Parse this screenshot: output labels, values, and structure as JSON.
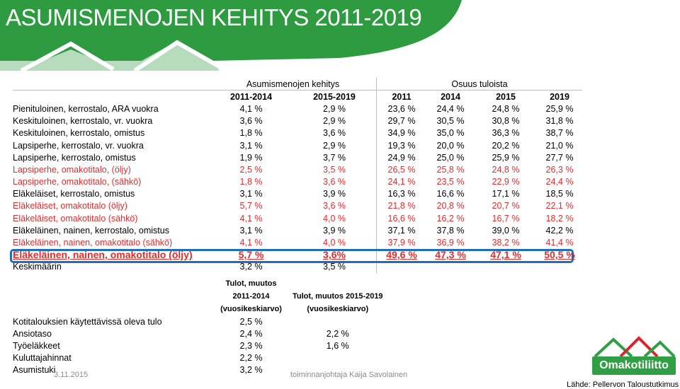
{
  "title": "ASUMISMENOJEN KEHITYS 2011-2019",
  "colors": {
    "banner": "#2e9b41",
    "red": "#e32b2b",
    "highlight": "#1f6fb7"
  },
  "table": {
    "group_headers": {
      "kehitys": "Asumismenojen kehitys",
      "osuus": "Osuus tuloista"
    },
    "column_headers": [
      "2011-2014",
      "2015-2019",
      "2011",
      "2014",
      "2015",
      "2019"
    ],
    "rows": [
      {
        "label": "Pienituloinen, kerrostalo, ARA vuokra",
        "v": [
          "4,1 %",
          "2,9 %",
          "23,6 %",
          "24,4 %",
          "24,8 %",
          "25,9 %"
        ]
      },
      {
        "label": "Keskituloinen, kerrostalo, vr. vuokra",
        "v": [
          "3,6 %",
          "2,9 %",
          "29,7 %",
          "30,5 %",
          "30,8 %",
          "31,8 %"
        ]
      },
      {
        "label": "Keskituloinen, kerrostalo, omistus",
        "v": [
          "1,8 %",
          "3,6 %",
          "34,9 %",
          "35,0 %",
          "36,3 %",
          "38,7 %"
        ]
      },
      {
        "label": "Lapsiperhe, kerrostalo, vr. vuokra",
        "v": [
          "3,1 %",
          "2,9 %",
          "19,3 %",
          "20,0 %",
          "20,2 %",
          "21,0 %"
        ]
      },
      {
        "label": "Lapsiperhe, kerrostalo, omistus",
        "v": [
          "1,9 %",
          "3,7 %",
          "24,9 %",
          "25,0 %",
          "25,9 %",
          "27,7 %"
        ]
      },
      {
        "label": "Lapsiperhe, omakotitalo, (öljy)",
        "v": [
          "2,5 %",
          "3,5 %",
          "26,5 %",
          "25,8 %",
          "24,8 %",
          "26,3 %"
        ]
      },
      {
        "label": "Lapsiperhe, omakotitalo, (sähkö)",
        "v": [
          "1,8 %",
          "3,6 %",
          "24,1 %",
          "23,5 %",
          "22,9 %",
          "24,4 %"
        ]
      },
      {
        "label": "Eläkeläiset, kerrostalo, omistus",
        "v": [
          "3,1 %",
          "3,9 %",
          "16,3 %",
          "16,6 %",
          "17,1 %",
          "18,5 %"
        ]
      },
      {
        "label": "Eläkeläiset, omakotitalo (öljy)",
        "v": [
          "5,7 %",
          "3,6 %",
          "21,8 %",
          "20,8 %",
          "20,7 %",
          "22,1 %"
        ]
      },
      {
        "label": "Eläkeläiset, omakotitalo (sähkö)",
        "v": [
          "4,1 %",
          "4,0 %",
          "16,6 %",
          "16,2 %",
          "16,7 %",
          "18,2 %"
        ]
      },
      {
        "label": "Eläkeläinen, nainen, kerrostalo, omistus",
        "v": [
          "3,1 %",
          "3,9 %",
          "37,1 %",
          "37,8 %",
          "39,0 %",
          "42,2 %"
        ]
      },
      {
        "label": "Eläkeläinen, nainen, omakotitalo (sähkö)",
        "v": [
          "4,1 %",
          "4,0 %",
          "37,9 %",
          "36,9 %",
          "38,2 %",
          "41,4 %"
        ]
      },
      {
        "label": "Eläkeläinen, nainen, omakotitalo (öljy)",
        "v": [
          "5,7 %",
          "3,6%",
          "49,6 %",
          "47,3 %",
          "47,1 %",
          "50,5 %"
        ]
      },
      {
        "label": "Keskimäärin",
        "v": [
          "3,2 %",
          "3,5 %",
          "",
          "",
          "",
          ""
        ]
      }
    ]
  },
  "income_table": {
    "header1": [
      "Tulot, muutos",
      "2011-2014",
      "(vuosikeskiarvo)"
    ],
    "header2": [
      "Tulot, muutos 2015-2019",
      "(vuosikeskiarvo)"
    ],
    "rows": [
      {
        "label": "Kotitalouksien käytettävissä oleva tulo",
        "v": [
          "2,5 %",
          ""
        ]
      },
      {
        "label": "Ansiotaso",
        "v": [
          "2,4 %",
          "2,2 %"
        ]
      },
      {
        "label": "Työeläkkeet",
        "v": [
          "2,3 %",
          "1,6 %"
        ]
      },
      {
        "label": "Kuluttajahinnat",
        "v": [
          "2,2 %",
          ""
        ]
      },
      {
        "label": "Asumistuki",
        "v": [
          "3,2 %",
          ""
        ]
      }
    ]
  },
  "footer": {
    "date": "3.11.2015",
    "presenter": "toiminnanjohtaja Kaija Savolainen",
    "source": "Lähde: Pellervon Taloustutkimus"
  },
  "logo": {
    "text": "Omakotiliitto",
    "icon": "house-roofs-icon"
  }
}
